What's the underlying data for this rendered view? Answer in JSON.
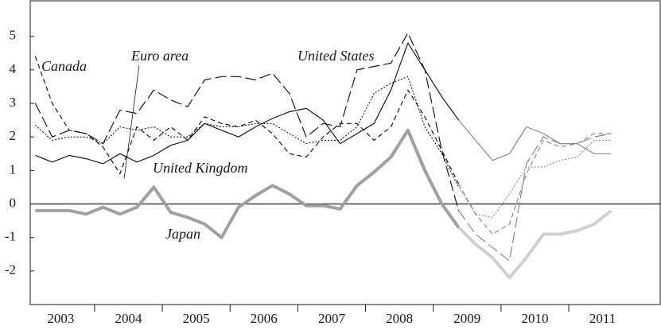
{
  "chart_data": {
    "type": "line",
    "xlim": [
      2003.05,
      2012.35
    ],
    "ylim": [
      -3,
      6.06
    ],
    "yticks": [
      -2,
      -1,
      0,
      1,
      2,
      3,
      4,
      5
    ],
    "xticks": [
      {
        "value": 2003.5,
        "label": "2003"
      },
      {
        "value": 2004.5,
        "label": "2004"
      },
      {
        "value": 2005.5,
        "label": "2005"
      },
      {
        "value": 2006.5,
        "label": "2006"
      },
      {
        "value": 2007.5,
        "label": "2007"
      },
      {
        "value": 2008.5,
        "label": "2008"
      },
      {
        "value": 2009.5,
        "label": "2009"
      },
      {
        "value": 2010.5,
        "label": "2010"
      },
      {
        "value": 2011.5,
        "label": "2011"
      }
    ],
    "xminor": [
      2004,
      2005,
      2006,
      2007,
      2008,
      2009,
      2010,
      2011
    ],
    "projection_from": 2009.375,
    "x": [
      2003.125,
      2003.375,
      2003.625,
      2003.875,
      2004.125,
      2004.375,
      2004.625,
      2004.875,
      2005.125,
      2005.375,
      2005.625,
      2005.875,
      2006.125,
      2006.375,
      2006.625,
      2006.875,
      2007.125,
      2007.375,
      2007.625,
      2007.875,
      2008.125,
      2008.375,
      2008.625,
      2008.875,
      2009.125,
      2009.375,
      2009.625,
      2009.875,
      2010.125,
      2010.375,
      2010.625,
      2010.875,
      2011.125,
      2011.375,
      2011.625
    ],
    "series": [
      {
        "name": "Canada",
        "color": "#1a1a1a",
        "projection_color": "#8a8a8a",
        "dash": "short-dash",
        "width": 1.2,
        "values": [
          4.4,
          3.0,
          2.2,
          2.1,
          1.7,
          0.9,
          2.3,
          1.9,
          2.3,
          1.9,
          2.6,
          2.4,
          2.3,
          2.5,
          2.1,
          1.5,
          1.4,
          2.0,
          2.4,
          2.4,
          1.9,
          2.3,
          3.4,
          2.6,
          1.6,
          0.6,
          -0.3,
          -0.9,
          -0.6,
          0.9,
          1.9,
          1.7,
          1.8,
          2.1,
          2.1
        ]
      },
      {
        "name": "Euro area",
        "color": "#1a1a1a",
        "projection_color": "#8a8a8a",
        "dash": "dotted",
        "width": 1.1,
        "values": [
          2.35,
          1.9,
          2.0,
          2.0,
          1.8,
          2.3,
          2.2,
          2.3,
          2.0,
          2.0,
          2.4,
          2.3,
          2.3,
          2.4,
          2.4,
          2.1,
          1.8,
          1.9,
          1.9,
          2.3,
          3.3,
          3.6,
          3.8,
          2.3,
          1.5,
          0.5,
          -0.3,
          -0.4,
          0.3,
          1.1,
          1.1,
          1.3,
          1.4,
          1.9,
          1.9
        ]
      },
      {
        "name": "United States",
        "color": "#1a1a1a",
        "projection_color": "#8a8a8a",
        "dash": "long-dash",
        "width": 1.2,
        "values": [
          3.0,
          2.0,
          2.2,
          2.1,
          1.8,
          2.8,
          2.7,
          3.4,
          3.1,
          2.9,
          3.7,
          3.8,
          3.8,
          3.7,
          3.9,
          3.3,
          2.0,
          2.4,
          2.3,
          4.0,
          4.1,
          4.2,
          5.1,
          4.0,
          1.6,
          -0.2,
          -0.9,
          -1.3,
          -1.7,
          1.2,
          2.0,
          1.8,
          1.8,
          2.0,
          2.1
        ]
      },
      {
        "name": "United Kingdom",
        "color": "#1a1a1a",
        "projection_color": "#8a8a8a",
        "dash": "solid",
        "width": 1.2,
        "values": [
          1.45,
          1.25,
          1.45,
          1.35,
          1.2,
          1.5,
          1.25,
          1.45,
          1.75,
          1.9,
          2.4,
          2.2,
          2.0,
          2.3,
          2.55,
          2.75,
          2.85,
          2.5,
          1.8,
          2.1,
          2.4,
          3.4,
          4.8,
          4.0,
          3.2,
          2.5,
          1.9,
          1.3,
          1.5,
          2.3,
          2.1,
          1.8,
          1.8,
          1.5,
          1.5
        ]
      },
      {
        "name": "Japan",
        "color": "#a0a0a0",
        "projection_color": "#d0d0d0",
        "dash": "solid",
        "width": 4,
        "values": [
          -0.2,
          -0.2,
          -0.2,
          -0.3,
          -0.1,
          -0.3,
          -0.1,
          0.5,
          -0.25,
          -0.4,
          -0.6,
          -1.0,
          -0.1,
          0.25,
          0.55,
          0.3,
          -0.05,
          -0.05,
          -0.15,
          0.55,
          0.95,
          1.4,
          2.2,
          1.0,
          0.0,
          -0.7,
          -1.2,
          -1.6,
          -2.2,
          -1.6,
          -0.9,
          -0.9,
          -0.8,
          -0.6,
          -0.2
        ]
      }
    ]
  }
}
